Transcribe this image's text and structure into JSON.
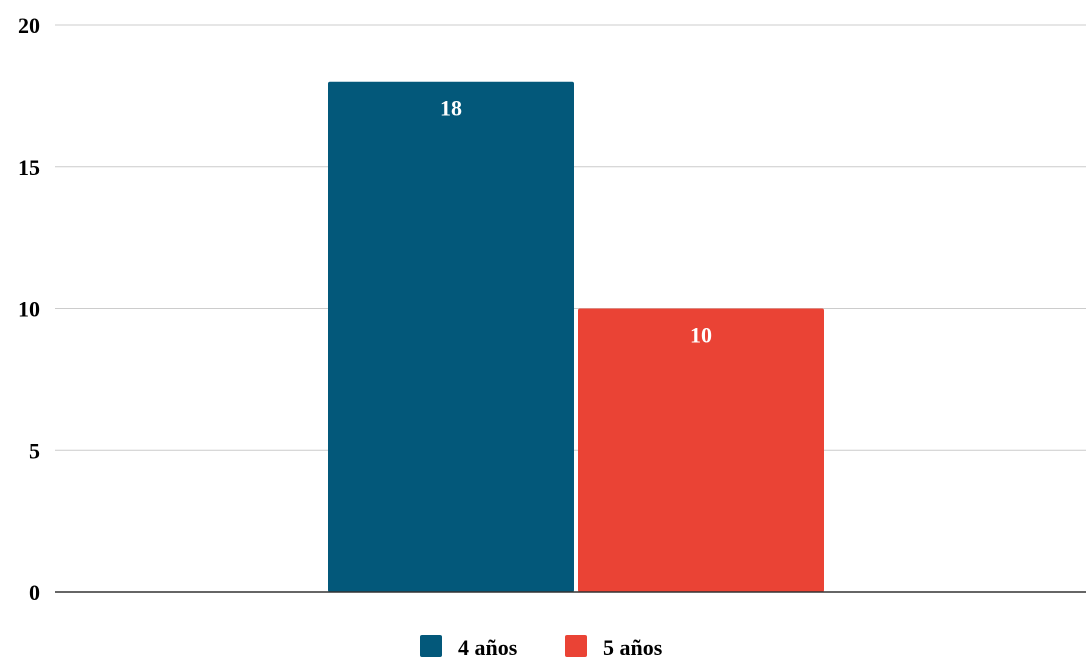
{
  "chart_data": {
    "type": "bar",
    "title": "",
    "xlabel": "",
    "ylabel": "",
    "categories": [
      ""
    ],
    "series": [
      {
        "name": "4 años",
        "values": [
          18
        ],
        "color": "#03587a"
      },
      {
        "name": "5 años",
        "values": [
          10
        ],
        "color": "#ea4335"
      }
    ],
    "ylim": [
      0,
      20
    ],
    "yticks": [
      0,
      5,
      10,
      15,
      20
    ],
    "grid": true,
    "data_labels": true,
    "legend_position": "bottom"
  }
}
